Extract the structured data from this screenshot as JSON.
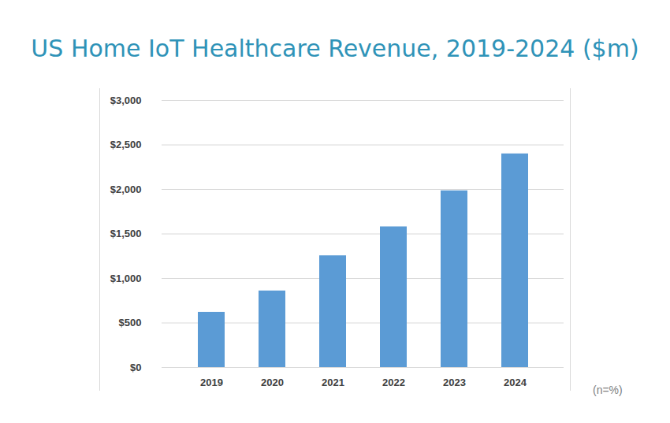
{
  "chart_data": {
    "type": "bar",
    "title": "US Home IoT Healthcare Revenue, 2019-2024 ($m)",
    "caption": "(n=%)",
    "categories": [
      "2019",
      "2020",
      "2021",
      "2022",
      "2023",
      "2024"
    ],
    "values": [
      620,
      860,
      1255,
      1580,
      1985,
      2400
    ],
    "color": "#5b9bd5",
    "ylim": [
      0,
      3000
    ],
    "yticks": [
      {
        "value": 0,
        "label": "$0"
      },
      {
        "value": 500,
        "label": "$500"
      },
      {
        "value": 1000,
        "label": "$1,000"
      },
      {
        "value": 1500,
        "label": "$1,500"
      },
      {
        "value": 2000,
        "label": "$2,000"
      },
      {
        "value": 2500,
        "label": "$2,500"
      },
      {
        "value": 3000,
        "label": "$3,000"
      }
    ],
    "grid": true
  }
}
